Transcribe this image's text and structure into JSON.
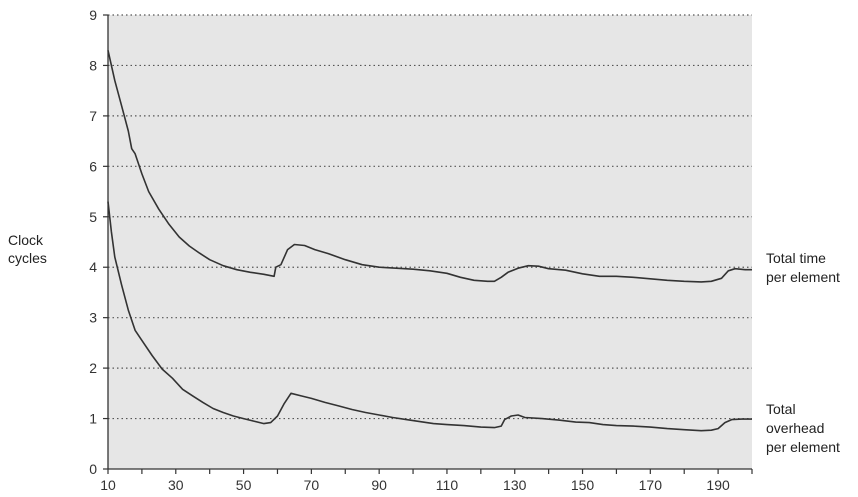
{
  "chart_data": {
    "type": "line",
    "ylabel_lines": [
      "Clock",
      "cycles"
    ],
    "xlim": [
      10,
      200
    ],
    "ylim": [
      0,
      9
    ],
    "x_ticks": [
      10,
      30,
      50,
      70,
      90,
      110,
      130,
      150,
      170,
      190
    ],
    "y_ticks": [
      0,
      1,
      2,
      3,
      4,
      5,
      6,
      7,
      8,
      9
    ],
    "grid": "horizontal dotted",
    "background": "#e6e6e6",
    "line_color": "#333333",
    "series": [
      {
        "label_lines": [
          "Total time",
          "per element"
        ],
        "points": [
          [
            10,
            8.3
          ],
          [
            12,
            7.7
          ],
          [
            14,
            7.2
          ],
          [
            16,
            6.7
          ],
          [
            17,
            6.35
          ],
          [
            18,
            6.25
          ],
          [
            20,
            5.85
          ],
          [
            22,
            5.5
          ],
          [
            25,
            5.15
          ],
          [
            28,
            4.85
          ],
          [
            31,
            4.6
          ],
          [
            34,
            4.42
          ],
          [
            37,
            4.28
          ],
          [
            40,
            4.15
          ],
          [
            44,
            4.03
          ],
          [
            48,
            3.95
          ],
          [
            52,
            3.9
          ],
          [
            56,
            3.86
          ],
          [
            59,
            3.82
          ],
          [
            59.5,
            4.0
          ],
          [
            61,
            4.05
          ],
          [
            63,
            4.35
          ],
          [
            65,
            4.45
          ],
          [
            68,
            4.43
          ],
          [
            71,
            4.35
          ],
          [
            75,
            4.27
          ],
          [
            80,
            4.15
          ],
          [
            85,
            4.05
          ],
          [
            90,
            4.0
          ],
          [
            95,
            3.98
          ],
          [
            100,
            3.96
          ],
          [
            105,
            3.93
          ],
          [
            110,
            3.88
          ],
          [
            114,
            3.8
          ],
          [
            118,
            3.74
          ],
          [
            122,
            3.72
          ],
          [
            124,
            3.72
          ],
          [
            126,
            3.8
          ],
          [
            128,
            3.9
          ],
          [
            131,
            3.98
          ],
          [
            134,
            4.03
          ],
          [
            137,
            4.02
          ],
          [
            140,
            3.97
          ],
          [
            145,
            3.94
          ],
          [
            150,
            3.87
          ],
          [
            155,
            3.82
          ],
          [
            160,
            3.82
          ],
          [
            165,
            3.8
          ],
          [
            170,
            3.77
          ],
          [
            175,
            3.74
          ],
          [
            180,
            3.72
          ],
          [
            185,
            3.71
          ],
          [
            188,
            3.72
          ],
          [
            191,
            3.78
          ],
          [
            193,
            3.93
          ],
          [
            195,
            3.97
          ],
          [
            198,
            3.95
          ],
          [
            200,
            3.95
          ]
        ]
      },
      {
        "label_lines": [
          "Total",
          "overhead",
          "per element"
        ],
        "points": [
          [
            10,
            5.3
          ],
          [
            11,
            4.7
          ],
          [
            12,
            4.2
          ],
          [
            14,
            3.65
          ],
          [
            16,
            3.15
          ],
          [
            18,
            2.75
          ],
          [
            20,
            2.55
          ],
          [
            23,
            2.25
          ],
          [
            26,
            1.98
          ],
          [
            29,
            1.8
          ],
          [
            32,
            1.58
          ],
          [
            35,
            1.45
          ],
          [
            38,
            1.32
          ],
          [
            41,
            1.2
          ],
          [
            44,
            1.12
          ],
          [
            47,
            1.05
          ],
          [
            50,
            1.0
          ],
          [
            53,
            0.95
          ],
          [
            56,
            0.9
          ],
          [
            58,
            0.92
          ],
          [
            60,
            1.05
          ],
          [
            62,
            1.3
          ],
          [
            64,
            1.5
          ],
          [
            67,
            1.45
          ],
          [
            70,
            1.4
          ],
          [
            74,
            1.32
          ],
          [
            78,
            1.25
          ],
          [
            82,
            1.18
          ],
          [
            86,
            1.12
          ],
          [
            90,
            1.07
          ],
          [
            94,
            1.02
          ],
          [
            98,
            0.98
          ],
          [
            102,
            0.94
          ],
          [
            106,
            0.9
          ],
          [
            110,
            0.88
          ],
          [
            115,
            0.86
          ],
          [
            120,
            0.83
          ],
          [
            124,
            0.82
          ],
          [
            126,
            0.85
          ],
          [
            127,
            0.98
          ],
          [
            129,
            1.05
          ],
          [
            131,
            1.07
          ],
          [
            133,
            1.02
          ],
          [
            138,
            1.0
          ],
          [
            143,
            0.97
          ],
          [
            148,
            0.93
          ],
          [
            152,
            0.92
          ],
          [
            156,
            0.88
          ],
          [
            160,
            0.86
          ],
          [
            165,
            0.85
          ],
          [
            170,
            0.83
          ],
          [
            175,
            0.8
          ],
          [
            180,
            0.78
          ],
          [
            185,
            0.76
          ],
          [
            188,
            0.77
          ],
          [
            190,
            0.8
          ],
          [
            192,
            0.92
          ],
          [
            194,
            0.98
          ],
          [
            197,
            0.99
          ],
          [
            200,
            0.99
          ]
        ]
      }
    ]
  }
}
